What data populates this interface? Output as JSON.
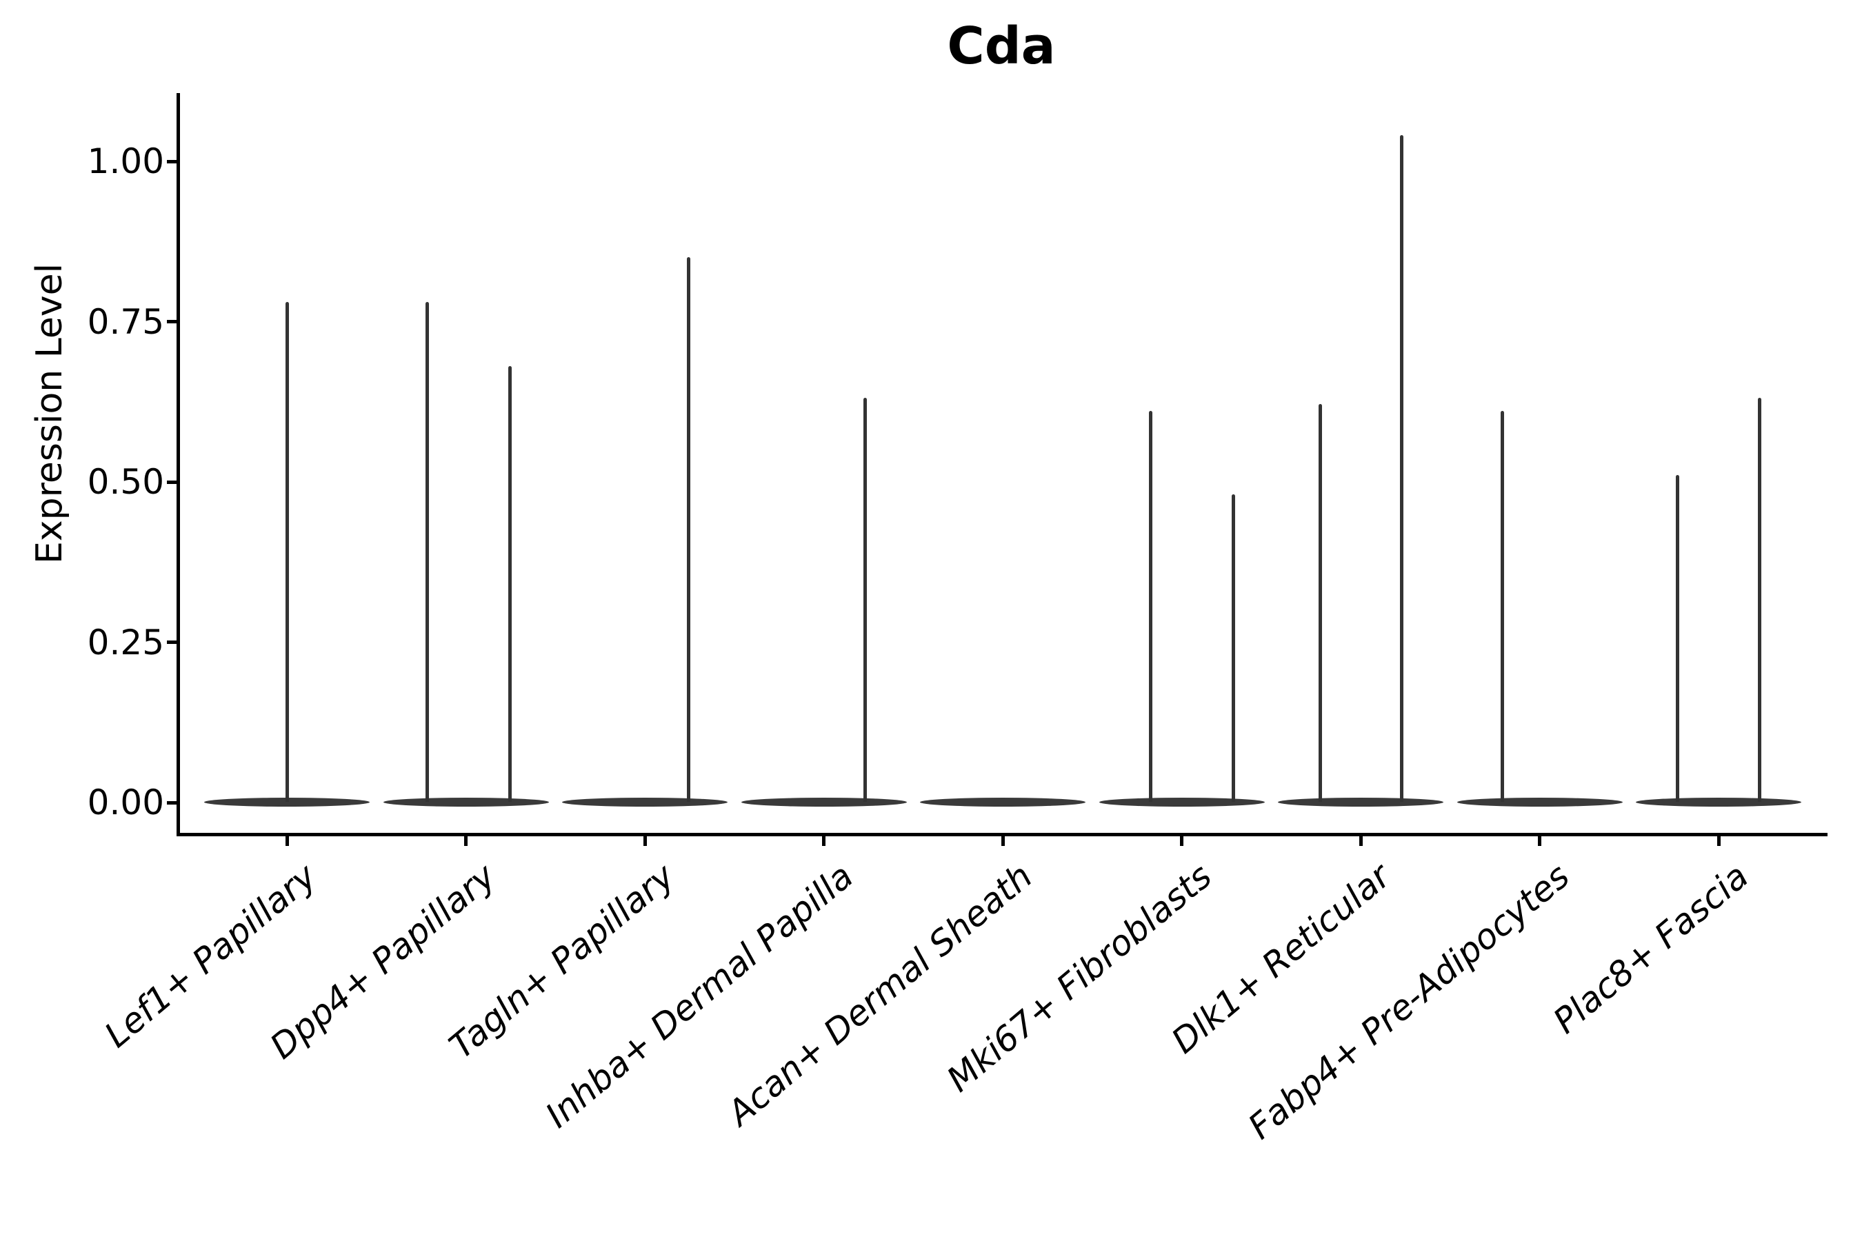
{
  "figure": {
    "title": "Cda",
    "background": "#ffffff"
  },
  "chart_data": {
    "type": "violin",
    "title": "Cda",
    "xlabel": "",
    "ylabel": "Expression Level",
    "ylim": [
      -0.05,
      1.11
    ],
    "grid": false,
    "legend": null,
    "x_tick_rotation_deg": 40,
    "x_tick_style": "italic",
    "yticks": [
      {
        "value": 0.0,
        "label": "0.00"
      },
      {
        "value": 0.25,
        "label": "0.25"
      },
      {
        "value": 0.5,
        "label": "0.50"
      },
      {
        "value": 0.75,
        "label": "0.75"
      },
      {
        "value": 1.0,
        "label": "1.00"
      }
    ],
    "categories": [
      "Lef1+ Papillary",
      "Dpp4+ Papillary",
      "Tagln+ Papillary",
      "Inhba+ Dermal Papilla",
      "Acan+ Dermal Sheath",
      "Mki67+ Fibroblasts",
      "Dlk1+ Reticular",
      "Fabp4+ Pre-Adipocytes",
      "Plac8+ Fascia"
    ],
    "violins": [
      {
        "category": "Lef1+ Papillary",
        "bulk_value": 0.0,
        "tails": [
          {
            "offset_frac": 0.0,
            "max": 0.78
          }
        ]
      },
      {
        "category": "Dpp4+ Papillary",
        "bulk_value": 0.0,
        "tails": [
          {
            "offset_frac": -0.215,
            "max": 0.78
          },
          {
            "offset_frac": 0.245,
            "max": 0.68
          }
        ]
      },
      {
        "category": "Tagln+ Papillary",
        "bulk_value": 0.0,
        "tails": [
          {
            "offset_frac": 0.245,
            "max": 0.85
          }
        ]
      },
      {
        "category": "Inhba+ Dermal Papilla",
        "bulk_value": 0.0,
        "tails": [
          {
            "offset_frac": 0.23,
            "max": 0.63
          }
        ]
      },
      {
        "category": "Acan+ Dermal Sheath",
        "bulk_value": 0.0,
        "tails": []
      },
      {
        "category": "Mki67+ Fibroblasts",
        "bulk_value": 0.0,
        "tails": [
          {
            "offset_frac": -0.175,
            "max": 0.61
          },
          {
            "offset_frac": 0.29,
            "max": 0.48
          }
        ]
      },
      {
        "category": "Dlk1+ Reticular",
        "bulk_value": 0.0,
        "tails": [
          {
            "offset_frac": -0.225,
            "max": 0.62
          },
          {
            "offset_frac": 0.23,
            "max": 1.04
          }
        ]
      },
      {
        "category": "Fabp4+ Pre-Adipocytes",
        "bulk_value": 0.0,
        "tails": [
          {
            "offset_frac": -0.21,
            "max": 0.61
          }
        ]
      },
      {
        "category": "Plac8+ Fascia",
        "bulk_value": 0.0,
        "tails": [
          {
            "offset_frac": -0.23,
            "max": 0.51
          },
          {
            "offset_frac": 0.23,
            "max": 0.63
          }
        ]
      }
    ],
    "colors": {
      "violin": "#3a3a3a",
      "spike": "#333333",
      "axis": "#000000",
      "text": "#000000",
      "background": "#ffffff"
    }
  }
}
